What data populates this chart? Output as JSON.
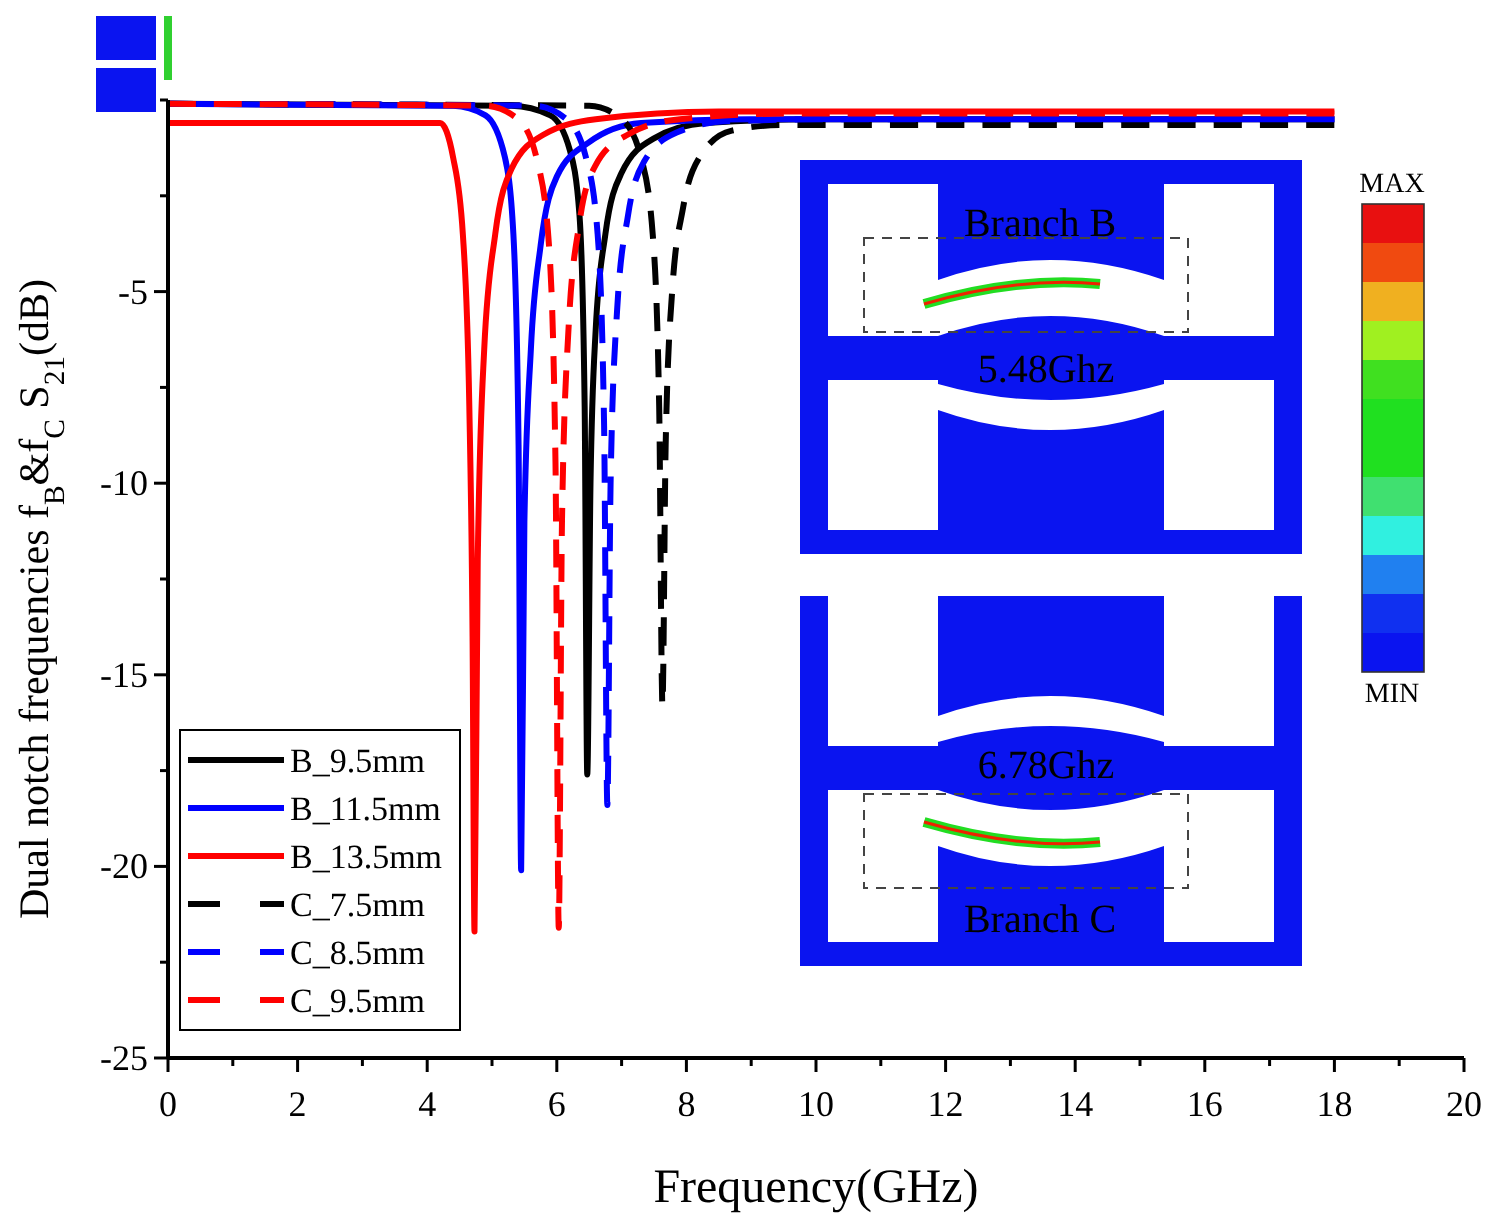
{
  "chart_data": {
    "type": "line",
    "xlabel": "Frequency(GHz)",
    "ylabel": "Dual notch frequencies f$_{B}$&f$_{C}$ S$_{21}$(dB)",
    "xlim": [
      0,
      20
    ],
    "xticks": [
      0,
      {
        "value": 1,
        "label": null
      },
      2,
      {
        "value": 3,
        "label": null
      },
      4,
      {
        "value": 5,
        "label": null
      },
      6,
      {
        "value": 7,
        "label": null
      },
      8,
      {
        "value": 9,
        "label": null
      },
      10,
      {
        "value": 11,
        "label": null
      },
      12,
      {
        "value": 13,
        "label": null
      },
      14,
      {
        "value": 15,
        "label": null
      },
      16,
      {
        "value": 17,
        "label": null
      },
      18,
      {
        "value": 19,
        "label": null
      },
      20
    ],
    "ylim": [
      -25,
      0
    ],
    "yticks": [
      -25,
      {
        "value": -22.5,
        "label": null
      },
      -20,
      {
        "value": -17.5,
        "label": null
      },
      -15,
      {
        "value": -12.5,
        "label": null
      },
      -10,
      {
        "value": -7.5,
        "label": null
      },
      -5,
      {
        "value": -2.5,
        "label": null
      },
      {
        "value": 0,
        "label": null
      }
    ],
    "grid": false,
    "legend": "bottom left",
    "marker": "none",
    "series": [
      {
        "name": "B_9.5mm",
        "color": "#000000",
        "line_style": "solid",
        "x": [
          0,
          5.3,
          5.9,
          6.2,
          6.35,
          6.43,
          6.47,
          6.52,
          6.6,
          6.75,
          7.0,
          7.5,
          8.3,
          10,
          18
        ],
        "values": [
          -0.1,
          -0.15,
          -0.4,
          -1.3,
          -3,
          -8,
          -17.6,
          -10,
          -6,
          -3.5,
          -1.9,
          -1,
          -0.6,
          -0.5,
          -0.5
        ]
      },
      {
        "name": "B_11.5mm",
        "color": "#0000ff",
        "line_style": "solid",
        "x": [
          0,
          4.4,
          4.9,
          5.2,
          5.33,
          5.41,
          5.45,
          5.5,
          5.6,
          5.75,
          6.0,
          6.5,
          7.3,
          9,
          18
        ],
        "values": [
          -0.1,
          -0.15,
          -0.4,
          -1.5,
          -3.5,
          -9,
          -20.1,
          -11,
          -6.5,
          -3.8,
          -2,
          -1.1,
          -0.6,
          -0.5,
          -0.5
        ]
      },
      {
        "name": "B_13.5mm",
        "color": "#ff0000",
        "line_style": "solid",
        "x": [
          0,
          4.2,
          4.4,
          4.55,
          4.65,
          4.7,
          4.73,
          4.78,
          4.88,
          5.05,
          5.3,
          5.8,
          6.6,
          8.5,
          18
        ],
        "values": [
          -0.6,
          -0.6,
          -1.5,
          -3.5,
          -8,
          -14,
          -21.7,
          -12,
          -6.5,
          -3.5,
          -1.8,
          -0.9,
          -0.5,
          -0.3,
          -0.3
        ]
      },
      {
        "name": "C_7.5mm",
        "color": "#000000",
        "line_style": "dashed",
        "x": [
          0,
          6.5,
          7.0,
          7.3,
          7.48,
          7.58,
          7.63,
          7.68,
          7.78,
          7.95,
          8.2,
          8.7,
          9.5,
          11,
          18
        ],
        "values": [
          -0.1,
          -0.15,
          -0.5,
          -1.5,
          -3.5,
          -8,
          -15.8,
          -9,
          -5,
          -2.8,
          -1.5,
          -0.8,
          -0.65,
          -0.65,
          -0.65
        ]
      },
      {
        "name": "C_8.5mm",
        "color": "#0000ff",
        "line_style": "dashed",
        "x": [
          0,
          5.65,
          6.15,
          6.45,
          6.63,
          6.73,
          6.78,
          6.83,
          6.93,
          7.1,
          7.35,
          7.85,
          8.65,
          10.5,
          18
        ],
        "values": [
          -0.1,
          -0.15,
          -0.5,
          -1.5,
          -3.5,
          -8.5,
          -18.4,
          -10,
          -5.5,
          -3,
          -1.6,
          -0.85,
          -0.55,
          -0.5,
          -0.5
        ]
      },
      {
        "name": "C_9.5mm",
        "color": "#ff0000",
        "line_style": "dashed",
        "x": [
          0,
          4.9,
          5.4,
          5.7,
          5.88,
          5.98,
          6.03,
          6.08,
          6.18,
          6.35,
          6.6,
          7.1,
          7.9,
          9.7,
          18
        ],
        "values": [
          -0.1,
          -0.15,
          -0.5,
          -1.6,
          -3.8,
          -9.5,
          -21.6,
          -11,
          -6,
          -3.2,
          -1.7,
          -0.9,
          -0.5,
          -0.35,
          -0.35
        ]
      }
    ],
    "annotations": [
      "Branch B",
      "5.48Ghz",
      "6.78Ghz",
      "Branch C",
      "MAX",
      "MIN"
    ]
  }
}
